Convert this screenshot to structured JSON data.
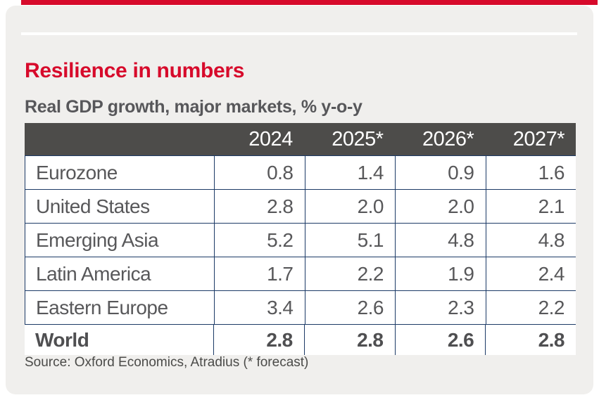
{
  "title": "Resilience in numbers",
  "subtitle": "Real GDP growth, major markets, % y-o-y",
  "source": "Source: Oxford Economics, Atradius (* forecast)",
  "colors": {
    "accent_red": "#d70a2b",
    "header_bg": "#4d4c4a",
    "border_navy": "#1c3a66",
    "card_bg": "#f0efed",
    "text_gray": "#58585a"
  },
  "chart_data": {
    "type": "table",
    "title": "Resilience in numbers",
    "subtitle": "Real GDP growth, major markets, % y-o-y",
    "columns": [
      "",
      "2024",
      "2025*",
      "2026*",
      "2027*"
    ],
    "rows": [
      [
        "Eurozone",
        "0.8",
        "1.4",
        "0.9",
        "1.6"
      ],
      [
        "United States",
        "2.8",
        "2.0",
        "2.0",
        "2.1"
      ],
      [
        "Emerging Asia",
        "5.2",
        "5.1",
        "4.8",
        "4.8"
      ],
      [
        "Latin America",
        "1.7",
        "2.2",
        "1.9",
        "2.4"
      ],
      [
        "Eastern Europe",
        "3.4",
        "2.6",
        "2.3",
        "2.2"
      ],
      [
        "World",
        "2.8",
        "2.8",
        "2.6",
        "2.8"
      ]
    ],
    "source": "Source: Oxford Economics, Atradius (* forecast)",
    "notes": "* forecast; values are % y-o-y real GDP growth; World row emphasized bold"
  }
}
